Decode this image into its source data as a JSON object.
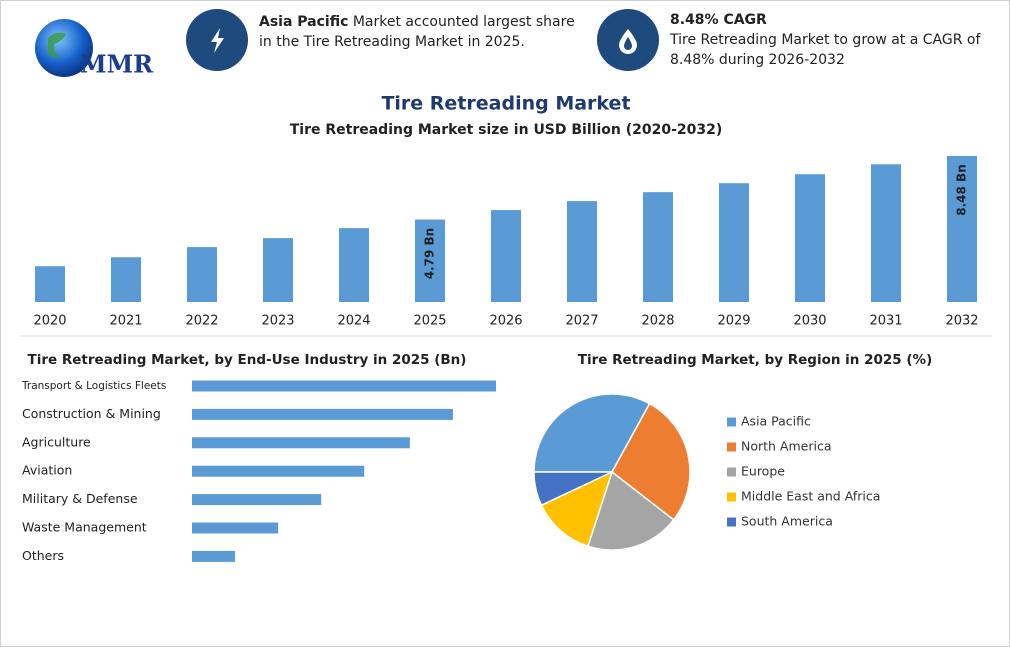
{
  "header": {
    "logo": "MMR",
    "highlight_1_bold": "Asia Pacific",
    "highlight_1_text": " Market accounted largest share in the Tire Retreading Market in 2025.",
    "highlight_2_bold": "8.48% CAGR",
    "highlight_2_text": "Tire Retreading Market to grow at a CAGR of 8.48% during 2026-2032",
    "title": "Tire Retreading Market"
  },
  "chart_data": [
    {
      "type": "bar",
      "title": "Tire Retreading Market size in USD Billion (2020-2032)",
      "categories": [
        "2020",
        "2021",
        "2022",
        "2023",
        "2024",
        "2025",
        "2026",
        "2027",
        "2028",
        "2029",
        "2030",
        "2031",
        "2032"
      ],
      "values": [
        2.08,
        2.6,
        3.19,
        3.71,
        4.29,
        4.79,
        5.34,
        5.86,
        6.38,
        6.9,
        7.42,
        8.0,
        8.48
      ],
      "value_labels": [
        null,
        null,
        null,
        null,
        null,
        "4.79 Bn",
        null,
        null,
        null,
        null,
        null,
        null,
        "8.48 Bn"
      ],
      "color": "#5b9bd5"
    },
    {
      "type": "hbar",
      "title": "Tire Retreading Market, by End-Use Industry in 2025 (Bn)",
      "categories": [
        "Transport & Logistics Fleets",
        "Construction & Mining",
        "Agriculture",
        "Aviation",
        "Military & Defense",
        "Waste Management",
        "Others"
      ],
      "values": [
        1.2,
        1.03,
        0.86,
        0.68,
        0.51,
        0.34,
        0.17
      ],
      "color": "#5b9bd5"
    },
    {
      "type": "pie",
      "title": "Tire Retreading Market, by Region in 2025 (%)",
      "categories": [
        "Asia Pacific",
        "North America",
        "Europe",
        "Middle East and Africa",
        "South America"
      ],
      "values": [
        33,
        27.5,
        19.5,
        13,
        7
      ],
      "colors": [
        "#5b9bd5",
        "#ed7d31",
        "#a5a5a5",
        "#ffc000",
        "#4472c4"
      ]
    }
  ]
}
